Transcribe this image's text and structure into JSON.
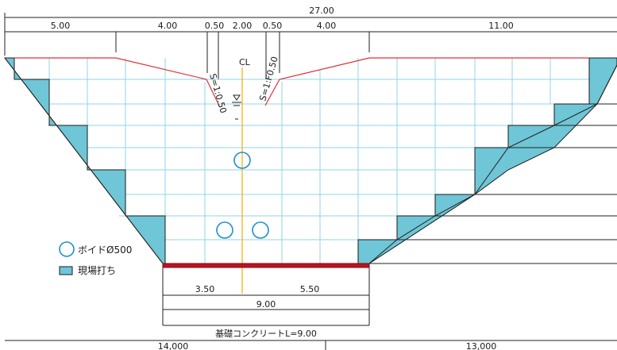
{
  "dimensions": {
    "overall": "27.00",
    "top_left": "5.00",
    "top_slope_left": "4.00",
    "top_notch_left": "0.50",
    "top_center": "2.00",
    "top_notch_right": "0.50",
    "top_slope_right": "4.00",
    "top_right": "11.00",
    "base_left": "3.50",
    "base_right": "5.50",
    "base_total": "9.00",
    "bottom_left": "14,000",
    "bottom_right": "13,000"
  },
  "labels": {
    "slope_left": "S=1:0.50",
    "slope_right": "S=1:F0.50",
    "centerline": "CL",
    "base_concrete": "基礎コンクリートL=9.00"
  },
  "legend": {
    "void": "ボイドØ500",
    "cast_in_place": "現場打ち"
  },
  "colors": {
    "concrete": "#6ec6d6",
    "grid": "#8fd6e8",
    "cut_line": "#e0303a",
    "void": "#1e8fd0",
    "centerline": "#f0b000",
    "base": "#c1121f"
  }
}
